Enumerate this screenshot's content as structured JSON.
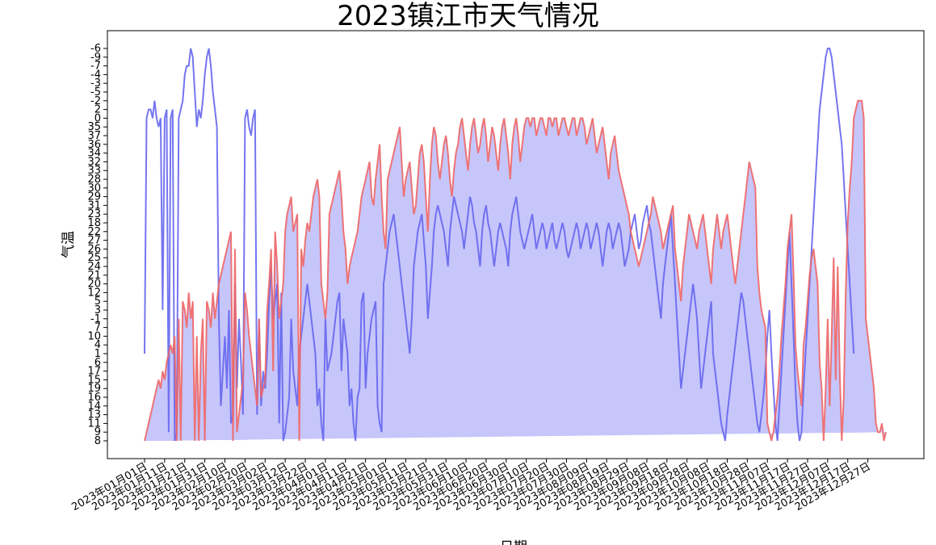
{
  "chart_data": {
    "type": "area",
    "title": "2023镇江市天气情况",
    "xlabel": "日期",
    "ylabel": "气温",
    "colors": {
      "high": "#ee6666",
      "low": "#6666ee",
      "fill": "#c6c6fb"
    },
    "y_categories": [
      "8",
      "9",
      "11",
      "13",
      "14",
      "16",
      "19",
      "15",
      "17",
      "6",
      "1",
      "4",
      "10",
      "7",
      "-1",
      "3",
      "5",
      "12",
      "20",
      "21",
      "24",
      "25",
      "26",
      "27",
      "22",
      "18",
      "23",
      "31",
      "29",
      "30",
      "28",
      "33",
      "32",
      "34",
      "36",
      "37",
      "35",
      "0",
      "2",
      "-2",
      "-5",
      "-3",
      "-4",
      "-7",
      "-9",
      "-6"
    ],
    "x_tick_labels": [
      "2023年01月01日",
      "2023年01月11日",
      "2023年01月21日",
      "2023年01月31日",
      "2023年02月10日",
      "2023年02月20日",
      "2023年03月02日",
      "2023年03月12日",
      "2023年03月22日",
      "2023年04月01日",
      "2023年04月11日",
      "2023年04月21日",
      "2023年05月01日",
      "2023年05月11日",
      "2023年05月21日",
      "2023年05月31日",
      "2023年06月10日",
      "2023年06月20日",
      "2023年06月30日",
      "2023年07月10日",
      "2023年07月20日",
      "2023年07月30日",
      "2023年08月09日",
      "2023年08月19日",
      "2023年08月29日",
      "2023年09月08日",
      "2023年09月18日",
      "2023年09月28日",
      "2023年10月08日",
      "2023年10月18日",
      "2023年10月28日",
      "2023年11月07日",
      "2023年11月17日",
      "2023年11月27日",
      "2023年12月07日",
      "2023年12月17日",
      "2023年12月27日"
    ],
    "series": [
      {
        "key": "high",
        "values": [
          0,
          1,
          2,
          3,
          4,
          5,
          6,
          7,
          6,
          8,
          7,
          9,
          10,
          11,
          10,
          12,
          0,
          14,
          0,
          16,
          15,
          13,
          17,
          14,
          16,
          0,
          12,
          0,
          10,
          14,
          0,
          16,
          15,
          13,
          17,
          14,
          16,
          18,
          19,
          20,
          21,
          22,
          23,
          24,
          0,
          22,
          1,
          3,
          5,
          7,
          17,
          15,
          12,
          10,
          8,
          6,
          4,
          14,
          5,
          6,
          7,
          15,
          18,
          22,
          8,
          24,
          20,
          14,
          16,
          18,
          24,
          26,
          27,
          28,
          24,
          25,
          26,
          0,
          22,
          20,
          23,
          25,
          24,
          26,
          28,
          29,
          30,
          28,
          18,
          16,
          14,
          17,
          26,
          27,
          28,
          29,
          30,
          31,
          28,
          24,
          22,
          18,
          20,
          21,
          22,
          23,
          24,
          26,
          28,
          29,
          30,
          31,
          32,
          28,
          27,
          30,
          32,
          34,
          28,
          24,
          22,
          30,
          31,
          32,
          33,
          34,
          35,
          36,
          32,
          28,
          30,
          31,
          32,
          29,
          26,
          27,
          30,
          33,
          34,
          32,
          28,
          24,
          30,
          34,
          36,
          35,
          32,
          30,
          32,
          34,
          35,
          33,
          30,
          28,
          31,
          33,
          34,
          36,
          37,
          35,
          33,
          31,
          34,
          36,
          37,
          35,
          33,
          34,
          36,
          37,
          35,
          32,
          34,
          36,
          35,
          33,
          31,
          34,
          36,
          37,
          35,
          33,
          30,
          34,
          36,
          37,
          35,
          32,
          34,
          36,
          37,
          37,
          36,
          37,
          37,
          35,
          36,
          37,
          37,
          36,
          35,
          37,
          37,
          36,
          37,
          37,
          35,
          36,
          37,
          37,
          36,
          35,
          36,
          37,
          37,
          35,
          36,
          37,
          37,
          36,
          34,
          35,
          36,
          37,
          35,
          33,
          34,
          35,
          36,
          34,
          32,
          30,
          33,
          34,
          35,
          33,
          31,
          30,
          29,
          28,
          27,
          26,
          24,
          23,
          22,
          21,
          20,
          21,
          22,
          23,
          24,
          25,
          26,
          28,
          27,
          26,
          25,
          24,
          22,
          23,
          24,
          25,
          26,
          27,
          22,
          20,
          18,
          16,
          20,
          22,
          24,
          26,
          25,
          24,
          23,
          22,
          24,
          25,
          26,
          24,
          22,
          20,
          18,
          22,
          24,
          26,
          24,
          22,
          24,
          25,
          26,
          24,
          22,
          20,
          18,
          20,
          22,
          24,
          26,
          28,
          30,
          32,
          31,
          30,
          29,
          20,
          17,
          15,
          14,
          13,
          2,
          1,
          0,
          1,
          3,
          5,
          8,
          12,
          15,
          18,
          22,
          24,
          26,
          19,
          11,
          8,
          6,
          4,
          11,
          13,
          16,
          19,
          21,
          22,
          20,
          18,
          9,
          6,
          0,
          6,
          14,
          4,
          12,
          21,
          7,
          20,
          8,
          0,
          5,
          17,
          25,
          29,
          32,
          37,
          38,
          39,
          39,
          39,
          37,
          14,
          12,
          10,
          8,
          6,
          2,
          1,
          1,
          2,
          0,
          1
        ]
      },
      {
        "key": "low",
        "values": [
          10,
          37,
          38,
          38,
          37,
          39,
          37,
          36,
          37,
          15,
          37,
          38,
          1,
          37,
          38,
          0,
          1,
          37,
          38,
          39,
          42,
          43,
          43,
          45,
          44,
          40,
          36,
          38,
          37,
          39,
          42,
          44,
          45,
          43,
          40,
          38,
          36,
          14,
          4,
          8,
          12,
          6,
          15,
          2,
          3,
          18,
          6,
          14,
          9,
          3,
          37,
          38,
          36,
          35,
          37,
          38,
          3,
          14,
          4,
          8,
          6,
          10,
          16,
          20,
          14,
          16,
          18,
          2,
          17,
          0,
          1,
          3,
          5,
          14,
          8,
          6,
          4,
          10,
          12,
          14,
          16,
          18,
          16,
          14,
          12,
          10,
          4,
          6,
          2,
          0,
          14,
          8,
          9,
          10,
          12,
          14,
          16,
          17,
          8,
          14,
          12,
          10,
          4,
          6,
          2,
          0,
          5,
          6,
          16,
          17,
          6,
          10,
          12,
          14,
          15,
          16,
          4,
          2,
          1,
          18,
          20,
          22,
          24,
          25,
          26,
          24,
          22,
          20,
          18,
          16,
          14,
          12,
          10,
          14,
          20,
          22,
          24,
          25,
          26,
          23,
          20,
          14,
          17,
          20,
          24,
          26,
          27,
          26,
          25,
          24,
          22,
          20,
          24,
          26,
          28,
          27,
          26,
          25,
          24,
          22,
          24,
          26,
          28,
          27,
          25,
          24,
          22,
          20,
          24,
          26,
          27,
          25,
          24,
          22,
          20,
          22,
          24,
          25,
          24,
          23,
          22,
          20,
          24,
          26,
          27,
          28,
          26,
          24,
          23,
          22,
          23,
          24,
          25,
          26,
          24,
          22,
          23,
          24,
          25,
          24,
          22,
          23,
          24,
          25,
          23,
          22,
          23,
          24,
          25,
          24,
          22,
          21,
          22,
          23,
          24,
          25,
          24,
          22,
          23,
          24,
          25,
          24,
          22,
          23,
          24,
          25,
          24,
          22,
          20,
          22,
          24,
          25,
          24,
          22,
          23,
          24,
          25,
          24,
          22,
          20,
          21,
          22,
          24,
          25,
          26,
          24,
          22,
          23,
          25,
          26,
          27,
          25,
          24,
          22,
          20,
          18,
          16,
          14,
          18,
          20,
          22,
          24,
          26,
          22,
          18,
          14,
          10,
          6,
          8,
          10,
          12,
          14,
          16,
          18,
          16,
          14,
          10,
          6,
          8,
          10,
          12,
          14,
          16,
          10,
          8,
          6,
          4,
          2,
          1,
          0,
          3,
          5,
          7,
          9,
          11,
          13,
          15,
          17,
          16,
          14,
          12,
          10,
          8,
          6,
          4,
          2,
          1,
          3,
          5,
          8,
          12,
          15,
          10,
          6,
          2,
          0,
          4,
          8,
          12,
          16,
          20,
          24,
          18,
          12,
          6,
          2,
          0,
          1,
          6,
          10,
          14,
          18,
          22,
          26,
          30,
          34,
          38,
          40,
          42,
          44,
          45,
          45,
          44,
          42,
          40,
          38,
          36,
          34,
          30,
          26,
          22,
          18,
          14,
          10
        ]
      }
    ]
  }
}
